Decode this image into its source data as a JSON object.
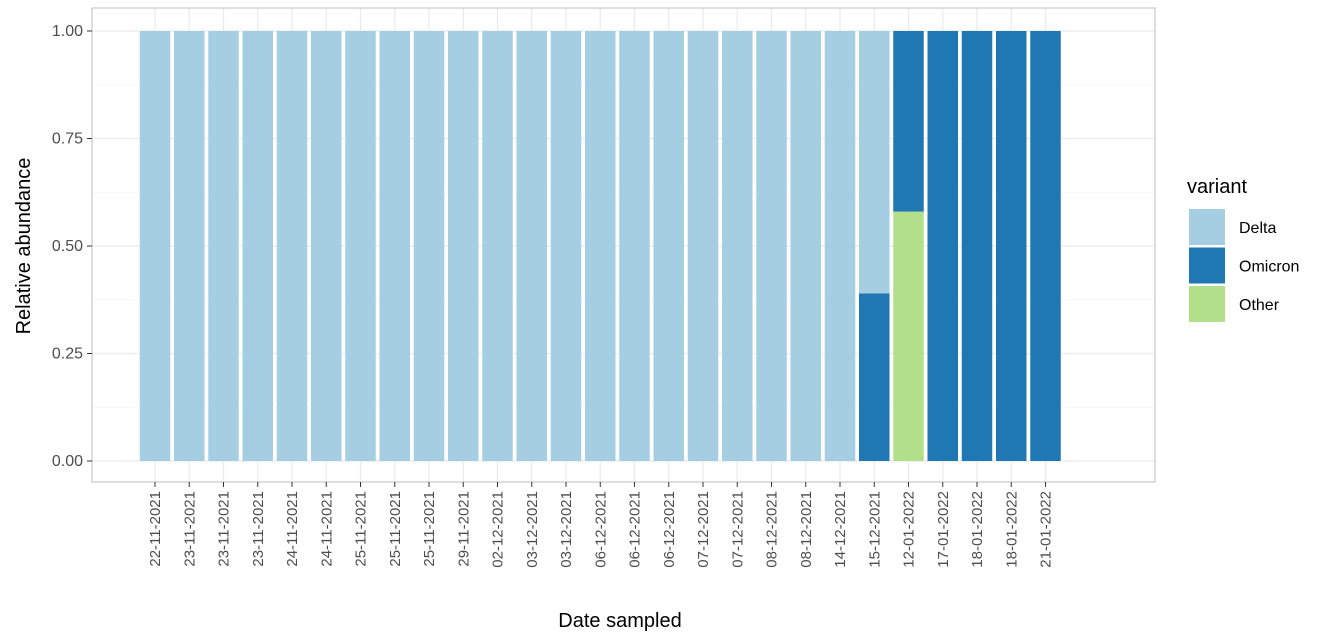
{
  "chart_data": {
    "type": "bar",
    "stacked": true,
    "xlabel": "Date sampled",
    "ylabel": "Relative abundance",
    "ylim": [
      0,
      1
    ],
    "y_ticks": [
      "0.00",
      "0.25",
      "0.50",
      "0.75",
      "1.00"
    ],
    "grid": true,
    "legend_title": "variant",
    "legend_position": "right",
    "categories": [
      "22-11-2021",
      "23-11-2021",
      "23-11-2021",
      "23-11-2021",
      "24-11-2021",
      "24-11-2021",
      "25-11-2021",
      "25-11-2021",
      "25-11-2021",
      "29-11-2021",
      "02-12-2021",
      "03-12-2021",
      "03-12-2021",
      "06-12-2021",
      "06-12-2021",
      "06-12-2021",
      "07-12-2021",
      "07-12-2021",
      "08-12-2021",
      "08-12-2021",
      "14-12-2021",
      "15-12-2021",
      "12-01-2022",
      "17-01-2022",
      "18-01-2022",
      "18-01-2022",
      "21-01-2022"
    ],
    "series": [
      {
        "name": "Delta",
        "color": "#a6cee3",
        "values": [
          1,
          1,
          1,
          1,
          1,
          1,
          1,
          1,
          1,
          1,
          1,
          1,
          1,
          1,
          1,
          1,
          1,
          1,
          1,
          1,
          1,
          0.61,
          0,
          0,
          0,
          0,
          0
        ]
      },
      {
        "name": "Omicron",
        "color": "#1f78b4",
        "values": [
          0,
          0,
          0,
          0,
          0,
          0,
          0,
          0,
          0,
          0,
          0,
          0,
          0,
          0,
          0,
          0,
          0,
          0,
          0,
          0,
          0,
          0.39,
          0.42,
          1,
          1,
          1,
          1
        ]
      },
      {
        "name": "Other",
        "color": "#b2df8a",
        "values": [
          0,
          0,
          0,
          0,
          0,
          0,
          0,
          0,
          0,
          0,
          0,
          0,
          0,
          0,
          0,
          0,
          0,
          0,
          0,
          0,
          0,
          0,
          0.58,
          0,
          0,
          0,
          0
        ]
      }
    ],
    "stack_order_bottom_to_top": [
      "Other",
      "Omicron",
      "Delta"
    ],
    "legend_order": [
      "Delta",
      "Omicron",
      "Other"
    ]
  }
}
